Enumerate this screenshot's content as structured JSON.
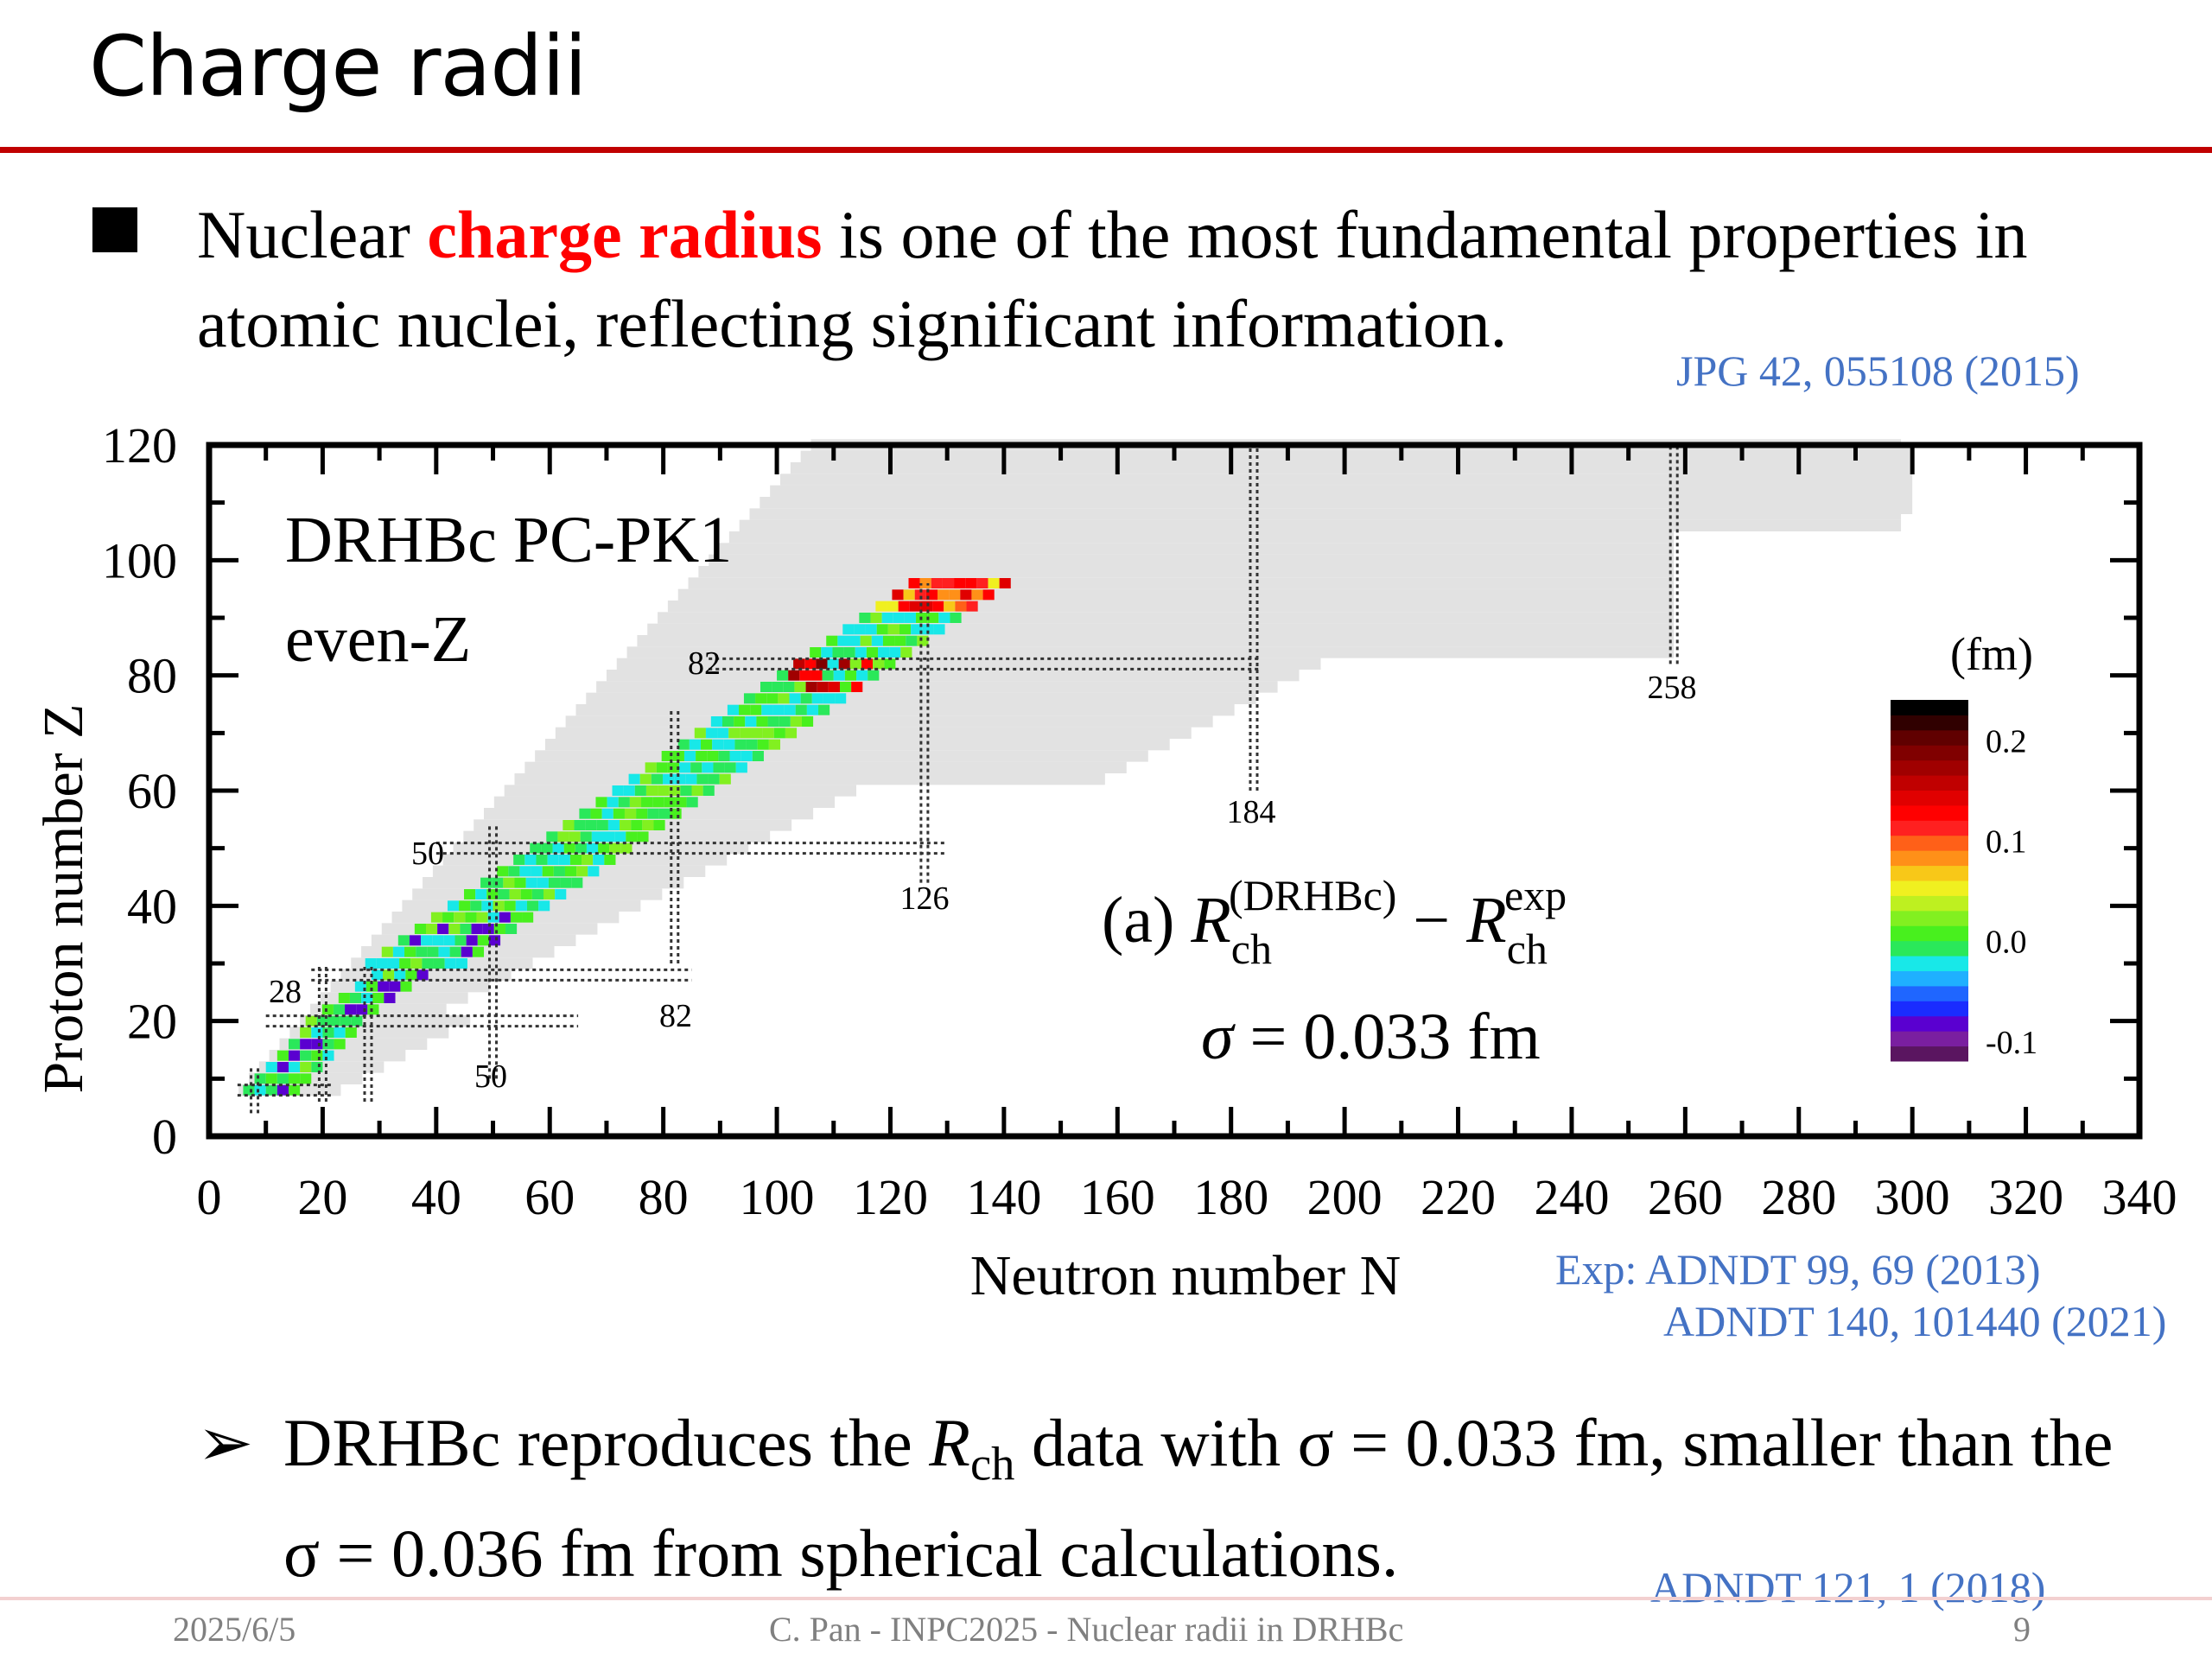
{
  "slide": {
    "title": "Charge radii",
    "intro": {
      "part1": "Nuclear ",
      "highlight": "charge radius",
      "part2": " is one of the most fundamental properties in atomic nuclei, reflecting significant information."
    },
    "ref_top": "JPG 42, 055108 (2015)",
    "ref_exp_1": "Exp:  ADNDT 99, 69 (2013)",
    "ref_exp_2": "ADNDT 140, 101440 (2021)",
    "ref_bottom": "ADNDT 121, 1 (2018)",
    "conclusion": {
      "p1": "DRHBc reproduces the ",
      "sym": "R",
      "sub": "ch",
      "p2": " data with σ = 0.033 fm, smaller than the σ = 0.036 fm from spherical calculations."
    },
    "footer": {
      "date": "2025/6/5",
      "center": "C. Pan - INPC2025 - Nuclear radii in DRHBc",
      "page": "9"
    }
  },
  "chart_data": {
    "type": "heatmap",
    "xlabel": "Neutron number N",
    "ylabel": "Proton number Z",
    "xlim": [
      0,
      340
    ],
    "ylim": [
      0,
      120
    ],
    "xticks": [
      "0",
      "20",
      "40",
      "60",
      "80",
      "100",
      "120",
      "140",
      "160",
      "180",
      "200",
      "220",
      "240",
      "260",
      "280",
      "300",
      "320",
      "340"
    ],
    "yticks": [
      "0",
      "20",
      "40",
      "60",
      "80",
      "100",
      "120"
    ],
    "legend_line1": "DRHBc  PC-PK1",
    "legend_line2": "even-Z",
    "panel_label": "(a) R(DRHBc)ch − Rexpch",
    "sigma_label": "σ = 0.033 fm",
    "colorbar": {
      "unit": "(fm)",
      "tick_labels": [
        "0.2",
        "0.1",
        "0.0",
        "-0.1"
      ],
      "tick_values": [
        0.2,
        0.1,
        0.0,
        -0.1
      ],
      "range": [
        -0.12,
        0.24
      ],
      "colors": [
        "#5a1560",
        "#7a1fa0",
        "#5a00d0",
        "#1a2cff",
        "#1f66ff",
        "#1fb0ff",
        "#18e8e8",
        "#2ae85a",
        "#48f01e",
        "#82f020",
        "#bef020",
        "#f0f020",
        "#f8c818",
        "#ff9018",
        "#ff6018",
        "#ff2020",
        "#ff0000",
        "#e00000",
        "#c00000",
        "#a00000",
        "#800000",
        "#600000",
        "#300000",
        "#000000"
      ]
    },
    "magic_numbers": {
      "proton": [
        8,
        20,
        28,
        50,
        82
      ],
      "neutron": [
        8,
        20,
        28,
        50,
        82,
        126,
        184,
        258
      ]
    }
  }
}
